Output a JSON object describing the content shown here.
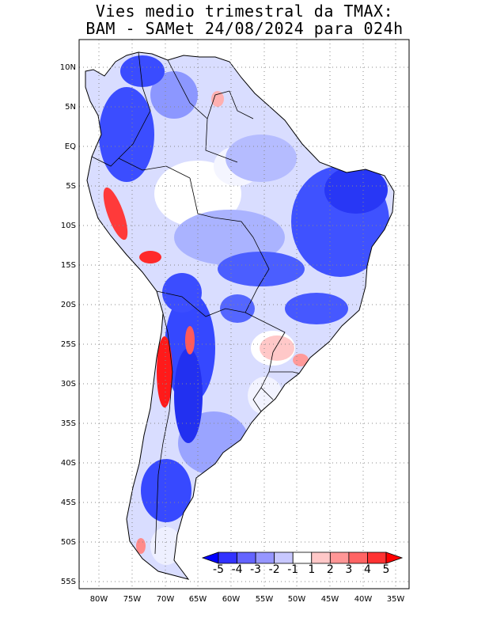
{
  "title": {
    "line1": "Vies medio trimestral da TMAX:",
    "line2": "BAM - SAMet 24/08/2024  para 024h"
  },
  "axes": {
    "lat_labels": [
      "10N",
      "5N",
      "EQ",
      "5S",
      "10S",
      "15S",
      "20S",
      "25S",
      "30S",
      "35S",
      "40S",
      "45S",
      "50S",
      "55S"
    ],
    "lon_labels": [
      "80W",
      "75W",
      "70W",
      "65W",
      "60W",
      "55W",
      "50W",
      "45W",
      "40W",
      "35W"
    ],
    "lat_range": [
      "12N",
      "56S"
    ],
    "lon_range": [
      "83W",
      "34W"
    ],
    "grid": "dotted"
  },
  "colorbar": {
    "labels": [
      "-5",
      "-4",
      "-3",
      "-2",
      "-1",
      "1",
      "2",
      "3",
      "4",
      "5"
    ],
    "colors": [
      "#0000ff",
      "#3232ff",
      "#6464ff",
      "#9696ff",
      "#c8c8ff",
      "#ffffff",
      "#ffc8c8",
      "#ff9696",
      "#ff6464",
      "#ff3232",
      "#ff0000"
    ]
  },
  "colors": {
    "strong_cold": "#1f2cf0",
    "cold": "#4a5cff",
    "mild_cold": "#8f9cff",
    "slight_cold": "#d7dcff",
    "neutral": "#ffffff",
    "warm": "#ff8a8a",
    "strong_warm": "#ff1a1a",
    "borders": "#000000"
  }
}
